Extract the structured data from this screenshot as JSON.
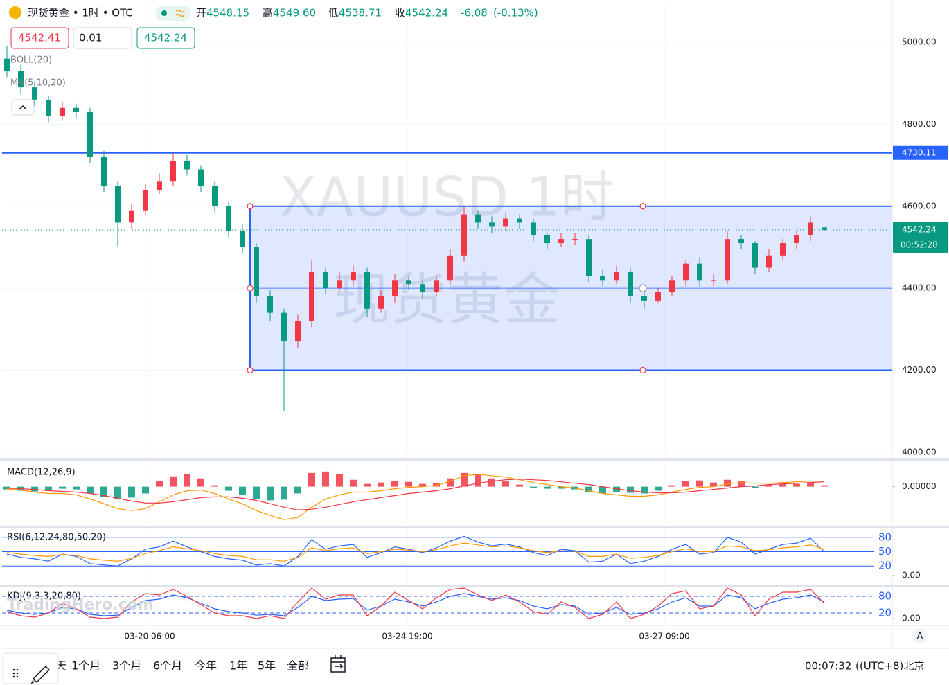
{
  "header": {
    "symbol": "现货黄金 • 1时 • OTC",
    "open_label": "开",
    "open": "4548.15",
    "high_label": "高",
    "high": "4549.60",
    "low_label": "低",
    "low": "4538.71",
    "close_label": "收",
    "close": "4542.24",
    "change": "-6.08",
    "change_pct": "(-0.13%)",
    "sell": "4542.41",
    "qty": "0.01",
    "buy": "4542.24",
    "countdown": "00:52:28"
  },
  "indicators": [
    "BOLL(20)",
    "MA(5,10,20)"
  ],
  "watermark": {
    "line1": "XAUUSD 1时",
    "line2": "现货黄金",
    "brand": "TradingHero.com"
  },
  "toolbar": {
    "ranges": [
      "天",
      "1个月",
      "3个月",
      "6个月",
      "今年",
      "1年",
      "5年",
      "全部"
    ],
    "time": "00:07:32",
    "timezone": "((UTC+8)北京",
    "axis_mode": "A"
  },
  "chart_data": [
    {
      "type": "candlestick",
      "up_color": "#f23645",
      "down_color": "#089981",
      "open": [
        4960,
        4930,
        4890,
        4860,
        4820,
        4840,
        4830,
        4720,
        4650,
        4560,
        4590,
        4640,
        4660,
        4710,
        4690,
        4650,
        4600,
        4540,
        4500,
        4380,
        4340,
        4270,
        4320,
        4440,
        4400,
        4420,
        4440,
        4350,
        4380,
        4420,
        4410,
        4390,
        4420,
        4480,
        4580,
        4560,
        4550,
        4570,
        4560,
        4530,
        4510,
        4520,
        4520,
        4430,
        4420,
        4440,
        4380,
        4370,
        4390,
        4420,
        4460,
        4420,
        4420,
        4520,
        4510,
        4450,
        4480,
        4510,
        4530,
        4548.15
      ],
      "high": [
        4990,
        4945,
        4905,
        4870,
        4855,
        4850,
        4840,
        4735,
        4660,
        4605,
        4655,
        4680,
        4730,
        4725,
        4700,
        4660,
        4610,
        4555,
        4510,
        4395,
        4350,
        4335,
        4470,
        4450,
        4440,
        4455,
        4450,
        4395,
        4435,
        4430,
        4420,
        4430,
        4495,
        4600,
        4590,
        4575,
        4585,
        4580,
        4570,
        4535,
        4535,
        4535,
        4530,
        4445,
        4455,
        4450,
        4390,
        4400,
        4430,
        4470,
        4475,
        4435,
        4540,
        4530,
        4515,
        4495,
        4520,
        4540,
        4575,
        4549.6
      ],
      "low": [
        4915,
        4875,
        4845,
        4805,
        4810,
        4815,
        4705,
        4635,
        4500,
        4545,
        4580,
        4630,
        4650,
        4675,
        4635,
        4585,
        4525,
        4485,
        4365,
        4320,
        4100,
        4255,
        4305,
        4385,
        4390,
        4405,
        4330,
        4340,
        4365,
        4395,
        4375,
        4380,
        4410,
        4465,
        4545,
        4535,
        4540,
        4545,
        4515,
        4495,
        4500,
        4505,
        4415,
        4405,
        4410,
        4365,
        4350,
        4365,
        4380,
        4405,
        4405,
        4405,
        4410,
        4495,
        4435,
        4440,
        4470,
        4495,
        4515,
        4538.71
      ],
      "close": [
        4930,
        4890,
        4860,
        4820,
        4840,
        4830,
        4720,
        4650,
        4560,
        4590,
        4640,
        4660,
        4710,
        4690,
        4650,
        4600,
        4540,
        4500,
        4380,
        4340,
        4270,
        4320,
        4440,
        4400,
        4420,
        4440,
        4350,
        4380,
        4420,
        4410,
        4390,
        4420,
        4480,
        4580,
        4560,
        4550,
        4570,
        4560,
        4530,
        4510,
        4520,
        4520,
        4430,
        4420,
        4440,
        4380,
        4370,
        4390,
        4420,
        4460,
        4420,
        4420,
        4520,
        4510,
        4450,
        4480,
        4510,
        4530,
        4560,
        4542.24
      ],
      "ylim": [
        3988,
        5098
      ],
      "yticks": [
        {
          "value": 4000,
          "label": "4000.00"
        },
        {
          "value": 4200,
          "label": "4200.00"
        },
        {
          "value": 4400,
          "label": "4400.00"
        },
        {
          "value": 4600,
          "label": "4600.00"
        },
        {
          "value": 4800,
          "label": "4800.00"
        },
        {
          "value": 5000,
          "label": "5000.00"
        }
      ],
      "xticks": [
        {
          "value": 10.3,
          "label": "03-20 06:00"
        },
        {
          "value": 28.9,
          "label": "03-24 19:00"
        },
        {
          "value": 47.45,
          "label": "03-27 09:00"
        }
      ],
      "grid": true,
      "hline": {
        "value": 4730.11,
        "color": "#2962ff"
      },
      "rect": {
        "top": 4600,
        "mid": 4400,
        "bottom": 4200,
        "x0": 17.55,
        "x1": 74.25,
        "color": "#2962ff"
      }
    },
    {
      "type": "macd",
      "title": "MACD(12,26,9)",
      "histogram": {
        "up_color": "#f23645",
        "down_color": "#089981",
        "values": [
          -4,
          -6,
          -7,
          -5,
          -3,
          -4,
          -10,
          -15,
          -18,
          -16,
          -10,
          8,
          15,
          18,
          12,
          2,
          -6,
          -12,
          -18,
          -20,
          -19,
          -10,
          20,
          22,
          18,
          10,
          4,
          6,
          8,
          7,
          4,
          5,
          12,
          20,
          18,
          12,
          8,
          3,
          -2,
          -3,
          -3,
          -4,
          -8,
          -10,
          -8,
          -9,
          -10,
          -6,
          2,
          8,
          9,
          6,
          10,
          8,
          -2,
          3,
          4,
          4,
          5,
          2
        ]
      },
      "series": [
        {
          "color": "#ff9800",
          "values": [
            -3,
            -5,
            -8,
            -10,
            -10,
            -12,
            -18,
            -25,
            -32,
            -35,
            -32,
            -22,
            -12,
            -6,
            -5,
            -10,
            -18,
            -25,
            -35,
            -42,
            -48,
            -45,
            -30,
            -18,
            -12,
            -8,
            -8,
            -6,
            -3,
            -1,
            0,
            2,
            8,
            16,
            18,
            16,
            14,
            10,
            6,
            3,
            0,
            -2,
            -6,
            -10,
            -12,
            -14,
            -14,
            -12,
            -8,
            -4,
            -1,
            0,
            4,
            6,
            5,
            5,
            6,
            7,
            8,
            8
          ]
        },
        {
          "color": "#f23645",
          "values": [
            -2,
            -3,
            -4,
            -6,
            -7,
            -8,
            -10,
            -13,
            -17,
            -21,
            -24,
            -24,
            -22,
            -19,
            -16,
            -15,
            -15,
            -17,
            -20,
            -25,
            -30,
            -34,
            -33,
            -30,
            -26,
            -22,
            -19,
            -16,
            -13,
            -10,
            -8,
            -6,
            -3,
            1,
            5,
            8,
            10,
            11,
            10,
            9,
            7,
            5,
            3,
            0,
            -3,
            -6,
            -8,
            -9,
            -9,
            -8,
            -6,
            -4,
            -2,
            0,
            1,
            3,
            4,
            5,
            6,
            7
          ]
        }
      ],
      "ylim": [
        -55,
        35
      ],
      "yticks": [
        {
          "value": 0,
          "label": "0.00000"
        }
      ]
    },
    {
      "type": "line",
      "title": "RSI(6,12,24,80,50,20)",
      "series": [
        {
          "color": "#2962ff",
          "values": [
            45,
            38,
            35,
            30,
            45,
            40,
            25,
            22,
            20,
            35,
            55,
            60,
            72,
            60,
            50,
            40,
            35,
            32,
            22,
            25,
            20,
            40,
            75,
            55,
            62,
            65,
            38,
            48,
            60,
            55,
            48,
            58,
            72,
            82,
            70,
            62,
            66,
            60,
            48,
            42,
            55,
            52,
            28,
            30,
            45,
            25,
            30,
            40,
            55,
            65,
            45,
            48,
            80,
            70,
            45,
            55,
            65,
            68,
            78,
            50
          ]
        },
        {
          "color": "#ff9800",
          "values": [
            48,
            45,
            42,
            40,
            44,
            42,
            35,
            32,
            30,
            36,
            46,
            52,
            60,
            56,
            52,
            46,
            42,
            40,
            33,
            33,
            30,
            38,
            58,
            52,
            56,
            58,
            46,
            50,
            55,
            53,
            50,
            54,
            62,
            68,
            64,
            60,
            62,
            58,
            52,
            48,
            52,
            51,
            40,
            40,
            45,
            36,
            38,
            42,
            50,
            56,
            50,
            50,
            62,
            60,
            52,
            54,
            58,
            60,
            64,
            55
          ]
        }
      ],
      "ylim": [
        0,
        100
      ],
      "yticks": [
        {
          "value": 0,
          "label": "0.00"
        }
      ],
      "levels": [
        80,
        50,
        20
      ],
      "level_style": "solid",
      "level_color": "#2962ff"
    },
    {
      "type": "line",
      "title": "KDJ(9,3,3,20,80)",
      "series": [
        {
          "color": "#2962ff",
          "values": [
            30,
            20,
            15,
            20,
            40,
            35,
            15,
            10,
            12,
            40,
            65,
            70,
            85,
            75,
            55,
            35,
            25,
            20,
            12,
            15,
            10,
            40,
            80,
            65,
            70,
            72,
            30,
            45,
            70,
            60,
            45,
            60,
            80,
            90,
            80,
            70,
            75,
            65,
            45,
            35,
            50,
            45,
            15,
            20,
            40,
            15,
            20,
            35,
            60,
            75,
            45,
            45,
            85,
            75,
            35,
            55,
            70,
            75,
            85,
            60
          ]
        },
        {
          "color": "#f23645",
          "values": [
            25,
            10,
            5,
            20,
            55,
            35,
            5,
            0,
            5,
            60,
            90,
            85,
            105,
            80,
            50,
            20,
            10,
            10,
            0,
            10,
            0,
            60,
            110,
            70,
            85,
            85,
            10,
            45,
            95,
            65,
            35,
            75,
            105,
            110,
            85,
            65,
            85,
            60,
            25,
            15,
            60,
            40,
            0,
            15,
            60,
            0,
            15,
            45,
            90,
            100,
            35,
            45,
            110,
            85,
            10,
            70,
            95,
            95,
            105,
            55
          ]
        }
      ],
      "ylim": [
        0,
        115
      ],
      "yticks": [
        {
          "value": 0,
          "label": "0.00"
        }
      ],
      "levels": [
        80,
        20
      ],
      "level_style": "dashed",
      "level_color": "#2962ff"
    }
  ]
}
